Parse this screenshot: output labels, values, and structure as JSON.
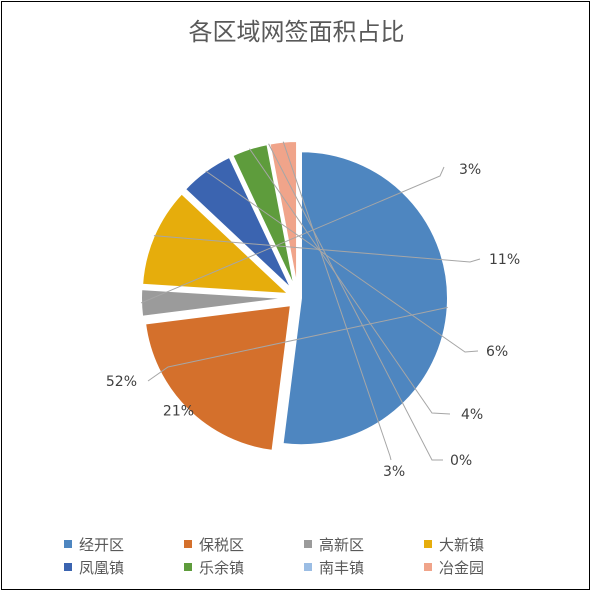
{
  "chart_data": {
    "type": "pie",
    "title": "各区域网签面积占比",
    "legend_position": "bottom",
    "slices": [
      {
        "name": "经开区",
        "value": 52,
        "label": "52%",
        "color": "#4e86c0"
      },
      {
        "name": "保税区",
        "value": 21,
        "label": "21%",
        "color": "#d4702c"
      },
      {
        "name": "高新区",
        "value": 3,
        "label": "3%",
        "color": "#9b9b9b"
      },
      {
        "name": "大新镇",
        "value": 11,
        "label": "11%",
        "color": "#e6ad0c"
      },
      {
        "name": "凤凰镇",
        "value": 6,
        "label": "6%",
        "color": "#3b64b0"
      },
      {
        "name": "乐余镇",
        "value": 4,
        "label": "4%",
        "color": "#5e9c3c"
      },
      {
        "name": "南丰镇",
        "value": 0,
        "label": "0%",
        "color": "#9bbde4"
      },
      {
        "name": "冶金园",
        "value": 3,
        "label": "3%",
        "color": "#f0a48a"
      }
    ]
  }
}
